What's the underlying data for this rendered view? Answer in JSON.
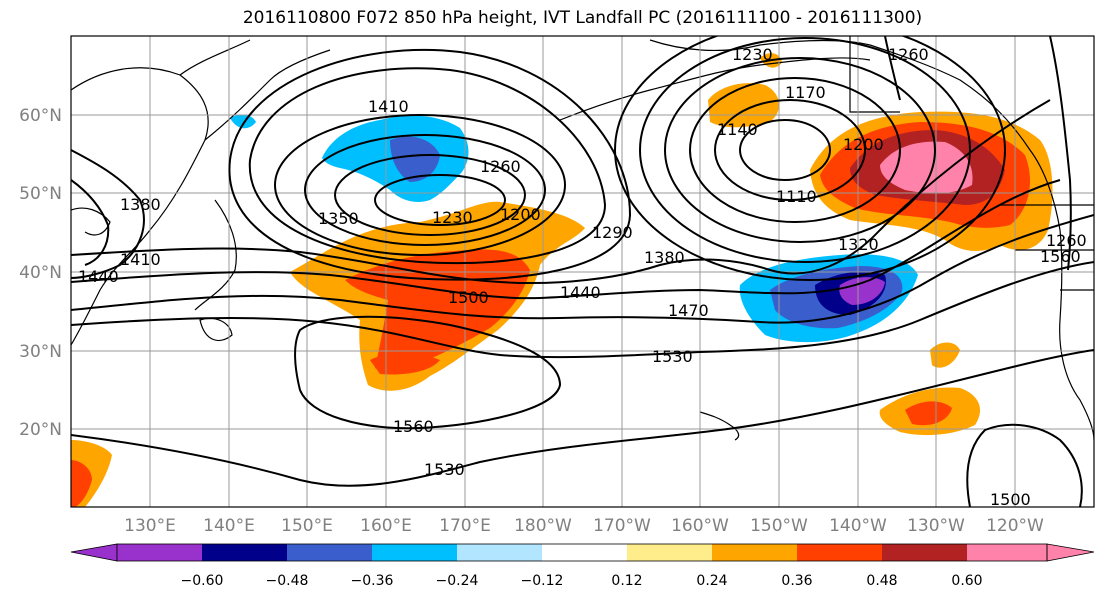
{
  "title": "2016110800 F072 850 hPa height, IVT Landfall PC (2016111100 - 2016111300)",
  "latitude_labels": [
    "60°N",
    "50°N",
    "40°N",
    "30°N",
    "20°N"
  ],
  "longitude_labels": [
    "130°E",
    "140°E",
    "150°E",
    "160°E",
    "170°E",
    "180°W",
    "170°W",
    "160°W",
    "150°W",
    "140°W",
    "130°W",
    "120°W"
  ],
  "contour_labels": [
    "1230",
    "1260",
    "1230",
    "1200",
    "1290",
    "1350",
    "1410",
    "1380",
    "1440",
    "1410",
    "1380",
    "1440",
    "1470",
    "1500",
    "1530",
    "1560",
    "1530",
    "1260",
    "1110",
    "1140",
    "1170",
    "1200",
    "1320",
    "1260",
    "1560",
    "1500"
  ],
  "colorbar": {
    "ticks": [
      "−0.60",
      "−0.48",
      "−0.36",
      "−0.24",
      "−0.12",
      "0.12",
      "0.24",
      "0.36",
      "0.48",
      "0.60"
    ],
    "colors": [
      "#9932cc",
      "#00008b",
      "#3a5fcd",
      "#00bfff",
      "#b2e5ff",
      "#ffffff",
      "#ffec8b",
      "#ffa500",
      "#ff4000",
      "#b22222",
      "#ff82ab"
    ]
  },
  "colors": {
    "grid": "#999999",
    "coast": "#000000",
    "contour": "#000000",
    "tick_label": "#808080"
  }
}
